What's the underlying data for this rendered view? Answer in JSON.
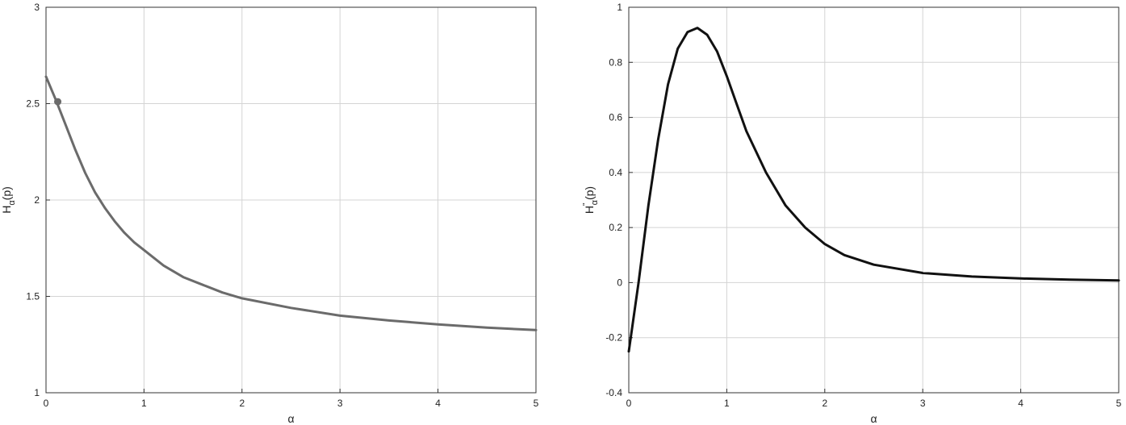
{
  "chart_data": [
    {
      "type": "line",
      "xlabel": "α",
      "ylabel": {
        "base": "H",
        "sub": "α",
        "suffix": "(p)"
      },
      "xlim": [
        0,
        5
      ],
      "ylim": [
        1,
        3
      ],
      "xticks": [
        0,
        1,
        2,
        3,
        4,
        5
      ],
      "yticks": [
        1,
        1.5,
        2,
        2.5,
        3
      ],
      "xtick_labels": [
        "0",
        "1",
        "2",
        "3",
        "4",
        "5"
      ],
      "ytick_labels": [
        "1",
        "1.5",
        "2",
        "2.5",
        "3"
      ],
      "grid": true,
      "line_color": "#6b6b6b",
      "series": [
        {
          "x": [
            0,
            0.1,
            0.2,
            0.3,
            0.4,
            0.5,
            0.6,
            0.7,
            0.8,
            0.9,
            1.0,
            1.2,
            1.4,
            1.6,
            1.8,
            2.0,
            2.5,
            3.0,
            3.5,
            4.0,
            4.5,
            5.0
          ],
          "y": [
            2.64,
            2.52,
            2.39,
            2.26,
            2.14,
            2.04,
            1.96,
            1.89,
            1.83,
            1.78,
            1.74,
            1.66,
            1.6,
            1.56,
            1.52,
            1.49,
            1.44,
            1.4,
            1.375,
            1.355,
            1.338,
            1.325
          ]
        }
      ],
      "marker": {
        "x": 0.12,
        "y": 2.51
      }
    },
    {
      "type": "line",
      "xlabel": "α",
      "ylabel": {
        "base": "H",
        "sup": "\"",
        "sub": "α",
        "suffix": "(p)"
      },
      "xlim": [
        0,
        5
      ],
      "ylim": [
        -0.4,
        1
      ],
      "xticks": [
        0,
        1,
        2,
        3,
        4,
        5
      ],
      "yticks": [
        -0.4,
        -0.2,
        0,
        0.2,
        0.4,
        0.6,
        0.8,
        1
      ],
      "xtick_labels": [
        "0",
        "1",
        "2",
        "3",
        "4",
        "5"
      ],
      "ytick_labels": [
        "-0.4",
        "-0.2",
        "0",
        "0.2",
        "0.4",
        "0.6",
        "0.8",
        "1"
      ],
      "grid": true,
      "line_color": "#111111",
      "series": [
        {
          "x": [
            0,
            0.1,
            0.2,
            0.3,
            0.4,
            0.5,
            0.6,
            0.7,
            0.8,
            0.9,
            1.0,
            1.1,
            1.2,
            1.4,
            1.6,
            1.8,
            2.0,
            2.2,
            2.5,
            3.0,
            3.5,
            4.0,
            4.5,
            5.0
          ],
          "y": [
            -0.25,
            0.0,
            0.28,
            0.52,
            0.72,
            0.85,
            0.91,
            0.925,
            0.9,
            0.84,
            0.75,
            0.65,
            0.55,
            0.4,
            0.28,
            0.2,
            0.14,
            0.1,
            0.065,
            0.035,
            0.022,
            0.015,
            0.011,
            0.008
          ]
        }
      ]
    }
  ]
}
